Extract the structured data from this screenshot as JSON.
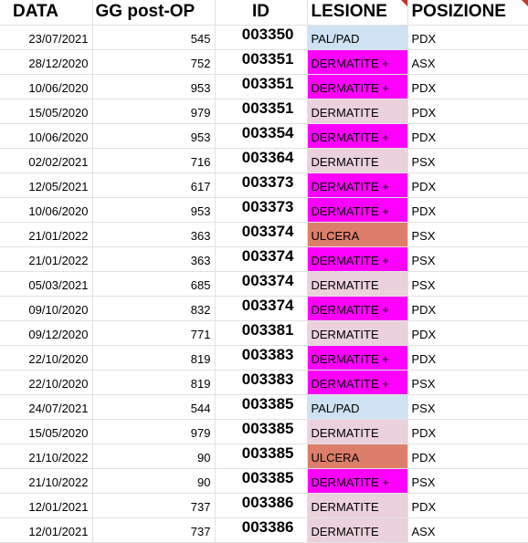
{
  "headers": [
    "DATA",
    "GG post-OP",
    "ID",
    "LESIONE",
    "POSIZIONE"
  ],
  "colors": {
    "pal_pad": "#cfe2f3",
    "dermatite_plus": "#ff00ff",
    "dermatite": "#ead1dc",
    "ulcera": "#dd7e6b",
    "note_marker": "#c0392b"
  },
  "rows": [
    {
      "date": "23/07/2021",
      "gg": "545",
      "id": "003350",
      "lesione": "PAL/PAD",
      "lesione_type": "pal_pad",
      "posizione": "PDX"
    },
    {
      "date": "28/12/2020",
      "gg": "752",
      "id": "003351",
      "lesione": "DERMATITE +",
      "lesione_type": "dermatite_plus",
      "posizione": "ASX"
    },
    {
      "date": "10/06/2020",
      "gg": "953",
      "id": "003351",
      "lesione": "DERMATITE +",
      "lesione_type": "dermatite_plus",
      "posizione": "PDX"
    },
    {
      "date": "15/05/2020",
      "gg": "979",
      "id": "003351",
      "lesione": "DERMATITE",
      "lesione_type": "dermatite",
      "posizione": "PDX"
    },
    {
      "date": "10/06/2020",
      "gg": "953",
      "id": "003354",
      "lesione": "DERMATITE +",
      "lesione_type": "dermatite_plus",
      "posizione": "PDX"
    },
    {
      "date": "02/02/2021",
      "gg": "716",
      "id": "003364",
      "lesione": "DERMATITE",
      "lesione_type": "dermatite",
      "posizione": "PSX"
    },
    {
      "date": "12/05/2021",
      "gg": "617",
      "id": "003373",
      "lesione": "DERMATITE +",
      "lesione_type": "dermatite_plus",
      "posizione": "PDX"
    },
    {
      "date": "10/06/2020",
      "gg": "953",
      "id": "003373",
      "lesione": "DERMATITE +",
      "lesione_type": "dermatite_plus",
      "posizione": "PDX"
    },
    {
      "date": "21/01/2022",
      "gg": "363",
      "id": "003374",
      "lesione": "ULCERA",
      "lesione_type": "ulcera",
      "posizione": "PSX"
    },
    {
      "date": "21/01/2022",
      "gg": "363",
      "id": "003374",
      "lesione": "DERMATITE +",
      "lesione_type": "dermatite_plus",
      "posizione": "PSX"
    },
    {
      "date": "05/03/2021",
      "gg": "685",
      "id": "003374",
      "lesione": "DERMATITE",
      "lesione_type": "dermatite",
      "posizione": "PSX"
    },
    {
      "date": "09/10/2020",
      "gg": "832",
      "id": "003374",
      "lesione": "DERMATITE +",
      "lesione_type": "dermatite_plus",
      "posizione": "PDX"
    },
    {
      "date": "09/12/2020",
      "gg": "771",
      "id": "003381",
      "lesione": "DERMATITE",
      "lesione_type": "dermatite",
      "posizione": "PDX"
    },
    {
      "date": "22/10/2020",
      "gg": "819",
      "id": "003383",
      "lesione": "DERMATITE +",
      "lesione_type": "dermatite_plus",
      "posizione": "PDX"
    },
    {
      "date": "22/10/2020",
      "gg": "819",
      "id": "003383",
      "lesione": "DERMATITE +",
      "lesione_type": "dermatite_plus",
      "posizione": "PSX"
    },
    {
      "date": "24/07/2021",
      "gg": "544",
      "id": "003385",
      "lesione": "PAL/PAD",
      "lesione_type": "pal_pad",
      "posizione": "PSX"
    },
    {
      "date": "15/05/2020",
      "gg": "979",
      "id": "003385",
      "lesione": "DERMATITE",
      "lesione_type": "dermatite",
      "posizione": "PDX"
    },
    {
      "date": "21/10/2022",
      "gg": "90",
      "id": "003385",
      "lesione": "ULCERA",
      "lesione_type": "ulcera",
      "posizione": "PDX"
    },
    {
      "date": "21/10/2022",
      "gg": "90",
      "id": "003385",
      "lesione": "DERMATITE +",
      "lesione_type": "dermatite_plus",
      "posizione": "PSX"
    },
    {
      "date": "12/01/2021",
      "gg": "737",
      "id": "003386",
      "lesione": "DERMATITE",
      "lesione_type": "dermatite",
      "posizione": "PDX"
    },
    {
      "date": "12/01/2021",
      "gg": "737",
      "id": "003386",
      "lesione": "DERMATITE",
      "lesione_type": "dermatite",
      "posizione": "ASX"
    }
  ]
}
